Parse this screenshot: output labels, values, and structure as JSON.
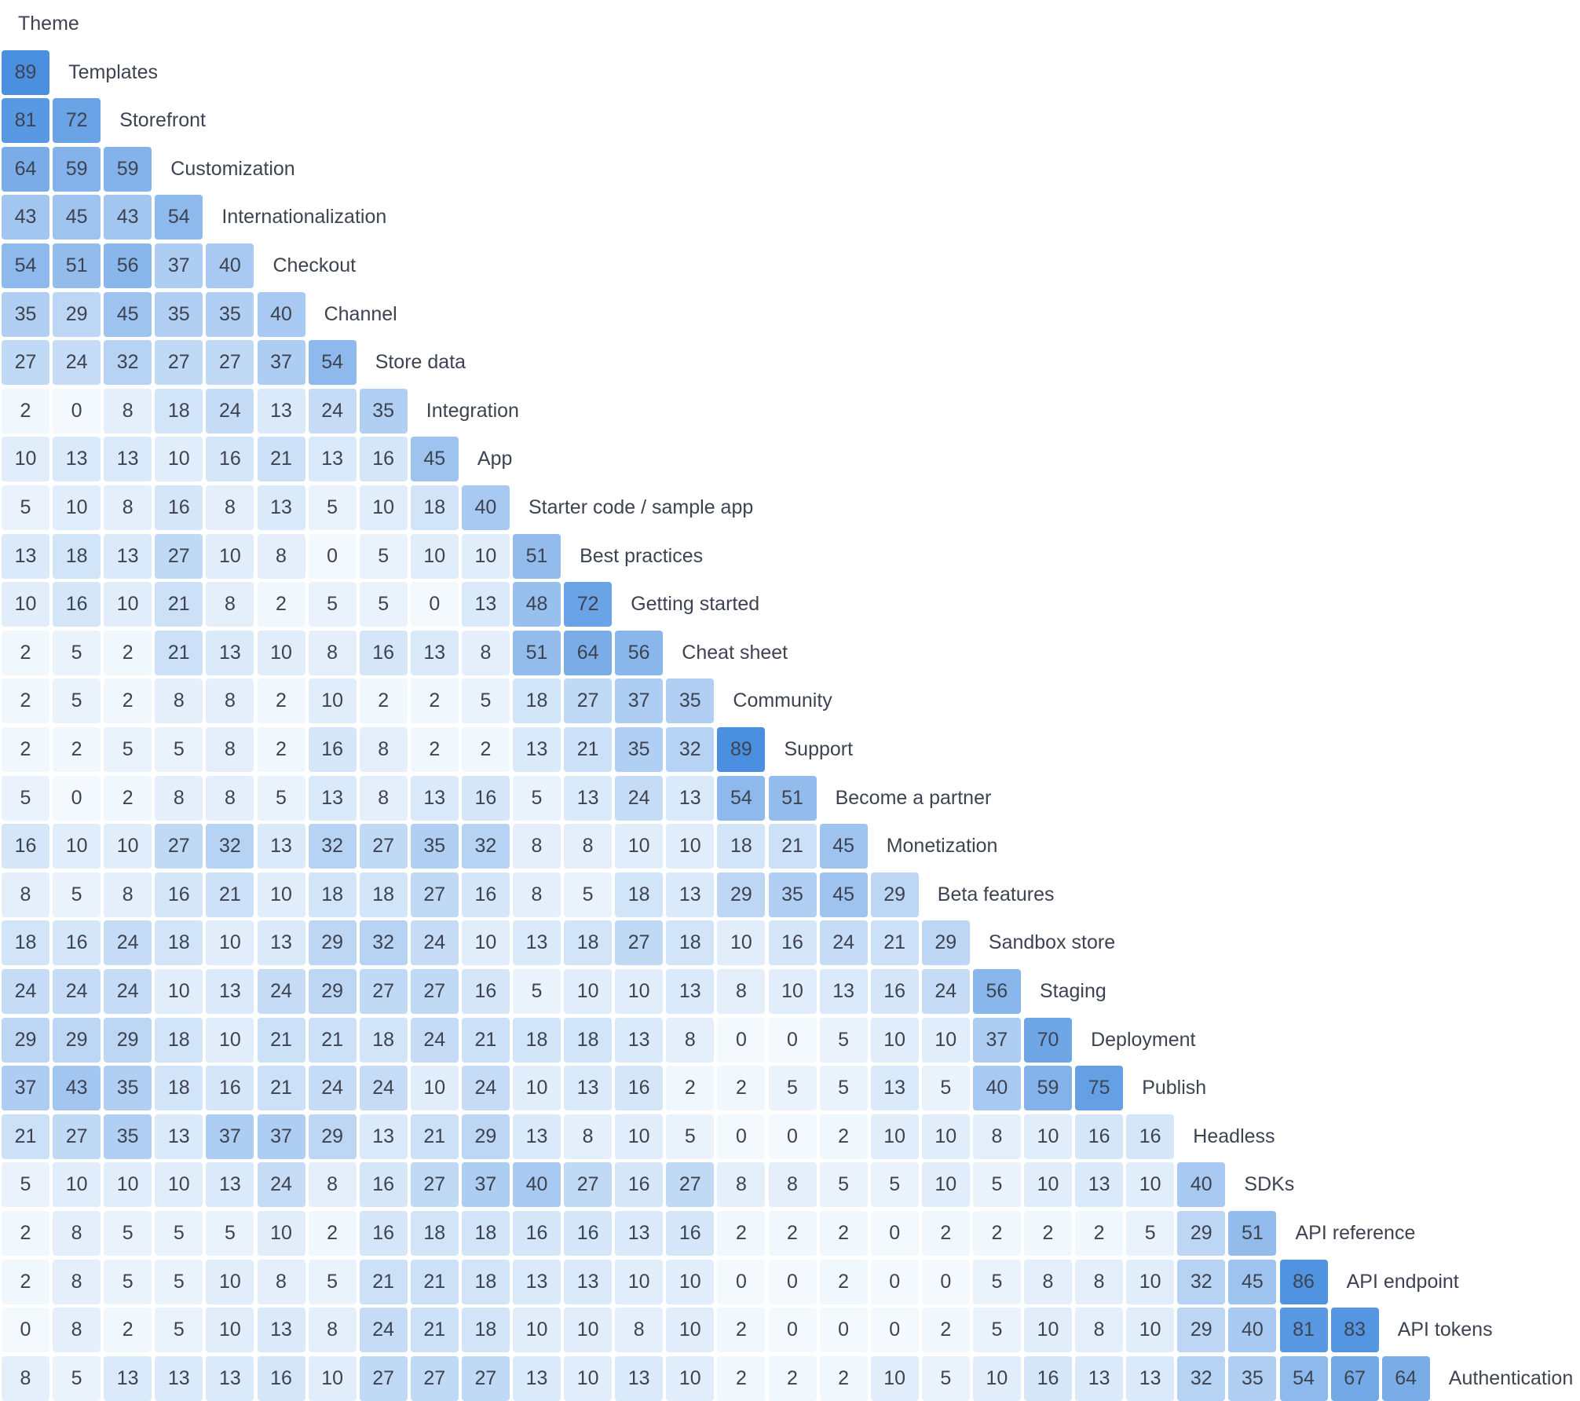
{
  "chart_data": {
    "type": "heatmap",
    "shape": "lower-triangular",
    "color_low": "#f4f9fe",
    "color_high": "#4a8fe0",
    "value_range": [
      0,
      89
    ],
    "labels": [
      "Theme",
      "Templates",
      "Storefront",
      "Customization",
      "Internationalization",
      "Checkout",
      "Channel",
      "Store data",
      "Integration",
      "App",
      "Starter code / sample app",
      "Best practices",
      "Getting started",
      "Cheat sheet",
      "Community",
      "Support",
      "Become a partner",
      "Monetization",
      "Beta features",
      "Sandbox store",
      "Staging",
      "Deployment",
      "Publish",
      "Headless",
      "SDKs",
      "API reference",
      "API endpoint",
      "API tokens",
      "Authentication"
    ],
    "rows": [
      [],
      [
        89
      ],
      [
        81,
        72
      ],
      [
        64,
        59,
        59
      ],
      [
        43,
        45,
        43,
        54
      ],
      [
        54,
        51,
        56,
        37,
        40
      ],
      [
        35,
        29,
        45,
        35,
        35,
        40
      ],
      [
        27,
        24,
        32,
        27,
        27,
        37,
        54
      ],
      [
        2,
        0,
        8,
        18,
        24,
        13,
        24,
        35
      ],
      [
        10,
        13,
        13,
        10,
        16,
        21,
        13,
        16,
        45
      ],
      [
        5,
        10,
        8,
        16,
        8,
        13,
        5,
        10,
        18,
        40
      ],
      [
        13,
        18,
        13,
        27,
        10,
        8,
        0,
        5,
        10,
        10,
        51
      ],
      [
        10,
        16,
        10,
        21,
        8,
        2,
        5,
        5,
        0,
        13,
        48,
        72
      ],
      [
        2,
        5,
        2,
        21,
        13,
        10,
        8,
        16,
        13,
        8,
        51,
        64,
        56
      ],
      [
        2,
        5,
        2,
        8,
        8,
        2,
        10,
        2,
        2,
        5,
        18,
        27,
        37,
        35
      ],
      [
        2,
        2,
        5,
        5,
        8,
        2,
        16,
        8,
        2,
        2,
        13,
        21,
        35,
        32,
        89
      ],
      [
        5,
        0,
        2,
        8,
        8,
        5,
        13,
        8,
        13,
        16,
        5,
        13,
        24,
        13,
        54,
        51
      ],
      [
        16,
        10,
        10,
        27,
        32,
        13,
        32,
        27,
        35,
        32,
        8,
        8,
        10,
        10,
        18,
        21,
        45
      ],
      [
        8,
        5,
        8,
        16,
        21,
        10,
        18,
        18,
        27,
        16,
        8,
        5,
        18,
        13,
        29,
        35,
        45,
        29
      ],
      [
        18,
        16,
        24,
        18,
        10,
        13,
        29,
        32,
        24,
        10,
        13,
        18,
        27,
        18,
        10,
        16,
        24,
        21,
        29
      ],
      [
        24,
        24,
        24,
        10,
        13,
        24,
        29,
        27,
        27,
        16,
        5,
        10,
        10,
        13,
        8,
        10,
        13,
        16,
        24,
        56
      ],
      [
        29,
        29,
        29,
        18,
        10,
        21,
        21,
        18,
        24,
        21,
        18,
        18,
        13,
        8,
        0,
        0,
        5,
        10,
        10,
        37,
        70
      ],
      [
        37,
        43,
        35,
        18,
        16,
        21,
        24,
        24,
        10,
        24,
        10,
        13,
        16,
        2,
        2,
        5,
        5,
        13,
        5,
        40,
        59,
        75
      ],
      [
        21,
        27,
        35,
        13,
        37,
        37,
        29,
        13,
        21,
        29,
        13,
        8,
        10,
        5,
        0,
        0,
        2,
        10,
        10,
        8,
        10,
        16,
        16
      ],
      [
        5,
        10,
        10,
        10,
        13,
        24,
        8,
        16,
        27,
        37,
        40,
        27,
        16,
        27,
        8,
        8,
        5,
        5,
        10,
        5,
        10,
        13,
        10,
        40
      ],
      [
        2,
        8,
        5,
        5,
        5,
        10,
        2,
        16,
        18,
        18,
        16,
        16,
        13,
        16,
        2,
        2,
        2,
        0,
        2,
        2,
        2,
        2,
        5,
        29,
        51
      ],
      [
        2,
        8,
        5,
        5,
        10,
        8,
        5,
        21,
        21,
        18,
        13,
        13,
        10,
        10,
        0,
        0,
        2,
        0,
        0,
        5,
        8,
        8,
        10,
        32,
        45,
        86
      ],
      [
        0,
        8,
        2,
        5,
        10,
        13,
        8,
        24,
        21,
        18,
        10,
        10,
        8,
        10,
        2,
        0,
        0,
        0,
        2,
        5,
        10,
        8,
        10,
        29,
        40,
        81,
        83
      ],
      [
        8,
        5,
        13,
        13,
        13,
        16,
        10,
        27,
        27,
        27,
        13,
        10,
        13,
        10,
        2,
        2,
        2,
        10,
        5,
        10,
        16,
        13,
        13,
        32,
        35,
        54,
        67,
        64
      ]
    ]
  }
}
